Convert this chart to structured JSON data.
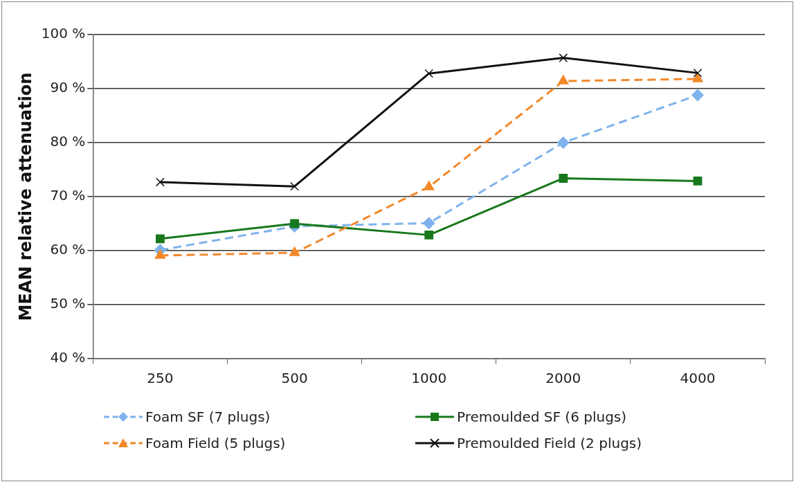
{
  "chart_data": {
    "type": "line",
    "ylabel": "MEAN relative attenuation",
    "categories": [
      "250",
      "500",
      "1000",
      "2000",
      "4000"
    ],
    "series": [
      {
        "name": "Foam SF (7 plugs)",
        "color": "#7fb2ec",
        "marker": "diamond",
        "line_style": "dashed",
        "values": [
          60.1,
          64.5,
          65.1,
          80.0,
          88.8
        ]
      },
      {
        "name": "Premoulded SF (6 plugs)",
        "color": "#17781c",
        "marker": "square",
        "line_style": "solid",
        "values": [
          62.2,
          65.0,
          62.9,
          73.4,
          72.9
        ]
      },
      {
        "name": "Foam Field (5 plugs)",
        "color": "#f2882a",
        "marker": "triangle",
        "line_style": "dashed",
        "values": [
          59.1,
          59.6,
          71.8,
          91.4,
          91.8
        ]
      },
      {
        "name": "Premoulded Field (2 plugs)",
        "color": "#111111",
        "marker": "cross",
        "line_style": "solid",
        "values": [
          72.7,
          71.9,
          92.8,
          95.7,
          92.9
        ]
      }
    ],
    "ylim": [
      40,
      100
    ],
    "yticks": [
      {
        "value": 40,
        "label": "40 %"
      },
      {
        "value": 50,
        "label": "50 %"
      },
      {
        "value": 60,
        "label": "60 %"
      },
      {
        "value": 70,
        "label": "70 %"
      },
      {
        "value": 80,
        "label": "80 %"
      },
      {
        "value": 90,
        "label": "90 %"
      },
      {
        "value": 100,
        "label": "100 %"
      }
    ],
    "grid": "y",
    "legend": "bottom"
  }
}
